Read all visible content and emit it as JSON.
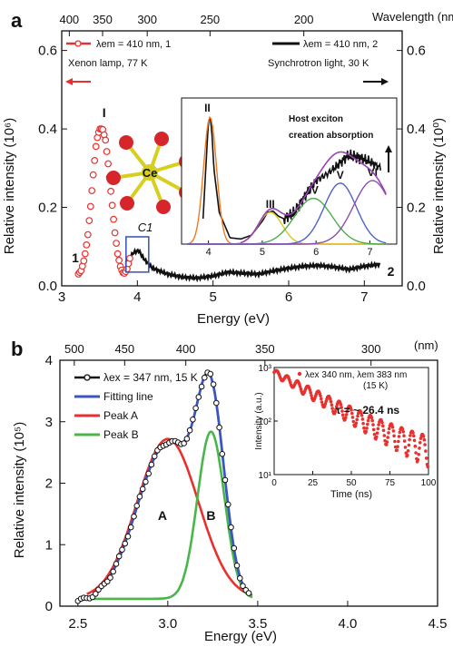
{
  "panels": {
    "a": {
      "panel_label": "a",
      "main": {
        "type": "scatter",
        "xlabel": "Energy (eV)",
        "xlim": [
          3,
          7.5
        ],
        "xticks": [
          "3",
          "4",
          "5",
          "6",
          "7"
        ],
        "ylabel_left": "Relative intensity (10⁶)",
        "ylim_left": [
          0,
          0.65
        ],
        "yticks_left": [
          "0.0",
          "0.2",
          "0.4",
          "0.6"
        ],
        "ylabel_right": "Relative intensity (10⁰)",
        "ylim_right": [
          0,
          0.65
        ],
        "yticks_right": [
          "0.0",
          "0.2",
          "0.4",
          "0.6"
        ],
        "top_axis_label": "Wavelength (nm)",
        "top_ticks": [
          "400",
          "350",
          "300",
          "250",
          "200"
        ],
        "top_tick_energies": [
          3.1,
          3.54,
          4.13,
          4.96,
          6.2
        ],
        "series": [
          {
            "name": "λem = 410 nm, 1",
            "subtitle": "Xenon lamp, 77 K",
            "color": "#e8312f",
            "marker": "open-circle",
            "x": [
              3.22,
              3.26,
              3.3,
              3.34,
              3.38,
              3.42,
              3.46,
              3.5,
              3.54,
              3.58,
              3.62,
              3.66,
              3.7,
              3.74,
              3.78,
              3.82,
              3.86,
              3.9
            ],
            "y": [
              0.03,
              0.04,
              0.07,
              0.12,
              0.2,
              0.29,
              0.37,
              0.4,
              0.4,
              0.37,
              0.3,
              0.22,
              0.14,
              0.08,
              0.045,
              0.03,
              0.04,
              0.07
            ]
          },
          {
            "name": "λem = 410 nm, 2",
            "subtitle": "Synchrotron light, 30 K",
            "color": "#111111",
            "marker": "line",
            "x": [
              3.85,
              3.95,
              4.02,
              4.08,
              4.2,
              4.4,
              4.6,
              4.8,
              5.0,
              5.2,
              5.4,
              5.6,
              5.8,
              6.0,
              6.2,
              6.4,
              6.6,
              6.8,
              7.0,
              7.2
            ],
            "y": [
              0.06,
              0.085,
              0.09,
              0.07,
              0.045,
              0.03,
              0.022,
              0.02,
              0.025,
              0.035,
              0.032,
              0.03,
              0.038,
              0.045,
              0.05,
              0.052,
              0.048,
              0.042,
              0.05,
              0.055
            ]
          }
        ],
        "peak_labels": [
          {
            "text": "I",
            "x": 3.56,
            "y": 0.43
          },
          {
            "text": "1",
            "x": 3.18,
            "y": 0.06
          },
          {
            "text": "2",
            "x": 7.35,
            "y": 0.025
          }
        ],
        "highlight_box": {
          "x": [
            3.85,
            4.15
          ],
          "y": [
            0.035,
            0.125
          ]
        },
        "crystal_label": "C1",
        "crystal_center_label": "Ce"
      },
      "inset": {
        "type": "line",
        "xlim": [
          3.5,
          7.5
        ],
        "xticks": [
          "4",
          "5",
          "6",
          "7"
        ],
        "ylim": [
          0,
          1
        ],
        "data": {
          "x": [
            3.9,
            3.95,
            4.0,
            4.03,
            4.06,
            4.1,
            4.2,
            4.4,
            4.6,
            4.8,
            5.0,
            5.1,
            5.2,
            5.3,
            5.4,
            5.6,
            5.8,
            6.0,
            6.2,
            6.4,
            6.6,
            6.8,
            7.0,
            7.2
          ],
          "y": [
            0.2,
            0.6,
            0.96,
            1.0,
            0.9,
            0.6,
            0.25,
            0.05,
            0.04,
            0.07,
            0.18,
            0.25,
            0.26,
            0.22,
            0.2,
            0.25,
            0.38,
            0.5,
            0.55,
            0.62,
            0.7,
            0.68,
            0.65,
            0.6
          ]
        },
        "peaks": [
          {
            "label": "II",
            "center": 4.03,
            "width": 0.12,
            "amp": 1.0,
            "color": "#ee7a22"
          },
          {
            "label": "III",
            "center": 5.15,
            "width": 0.22,
            "amp": 0.25,
            "color": "#d9c621"
          },
          {
            "label": "IV",
            "center": 5.95,
            "width": 0.35,
            "amp": 0.36,
            "color": "#4aae4a"
          },
          {
            "label": "V",
            "center": 6.45,
            "width": 0.3,
            "amp": 0.48,
            "color": "#4e62c8"
          },
          {
            "label": "VI",
            "center": 7.05,
            "width": 0.35,
            "amp": 0.5,
            "color": "#8a4fb0"
          }
        ],
        "envelope_color": "#9c3fb8",
        "annotation_line1": "Host exciton",
        "annotation_line2": "creation absorption"
      }
    },
    "b": {
      "panel_label": "b",
      "main": {
        "type": "line",
        "xlabel": "Energy (eV)",
        "xlim": [
          2.4,
          4.5
        ],
        "xticks": [
          "2.5",
          "3.0",
          "3.5",
          "4.0",
          "4.5"
        ],
        "ylabel": "Relative intensity (10⁵)",
        "ylim": [
          0,
          4
        ],
        "yticks": [
          "0",
          "1",
          "2",
          "3",
          "4"
        ],
        "top_axis_label": "(nm)",
        "top_ticks": [
          "500",
          "450",
          "400",
          "350",
          "300"
        ],
        "top_tick_energies": [
          2.48,
          2.76,
          3.1,
          3.54,
          4.13
        ],
        "series": [
          {
            "name": "λex = 347 nm, 15 K",
            "color": "#111111",
            "marker": "open-circle",
            "x": [
              2.5,
              2.55,
              2.6,
              2.65,
              2.7,
              2.75,
              2.8,
              2.85,
              2.9,
              2.95,
              3.0,
              3.05,
              3.1,
              3.15,
              3.2,
              3.25,
              3.3,
              3.35,
              3.4,
              3.45
            ],
            "y": [
              0.1,
              0.12,
              0.18,
              0.35,
              0.7,
              1.2,
              1.8,
              2.3,
              2.7,
              2.78,
              2.75,
              2.6,
              2.7,
              3.1,
              3.35,
              3.2,
              2.4,
              1.3,
              0.6,
              0.4
            ]
          },
          {
            "name": "Fitting line",
            "color": "#3a56c0"
          },
          {
            "name": "Peak A",
            "color": "#e8312f",
            "center": 3.0,
            "width": 0.17,
            "amp": 2.6
          },
          {
            "name": "Peak B",
            "color": "#49b649",
            "center": 3.24,
            "width": 0.075,
            "amp": 2.72
          }
        ],
        "peak_labels": [
          "A",
          "B"
        ],
        "baseline": 0.12
      },
      "inset": {
        "type": "scatter",
        "legend": "λex 340 nm, λem 383 nm",
        "legend_line2": "(15 K)",
        "xlabel": "Time (ns)",
        "xlim": [
          0,
          100
        ],
        "xticks": [
          "0",
          "25",
          "50",
          "75",
          "100"
        ],
        "ylabel": "Intensity (a.u.)",
        "ylim_log": [
          1,
          3
        ],
        "ytick_labels": [
          "10¹",
          "10²",
          "10³"
        ],
        "annotation": "τ = ~ 26.4 ns",
        "color": "#e8312f",
        "decay_start": 800,
        "tau_ns": 26.4
      }
    }
  }
}
